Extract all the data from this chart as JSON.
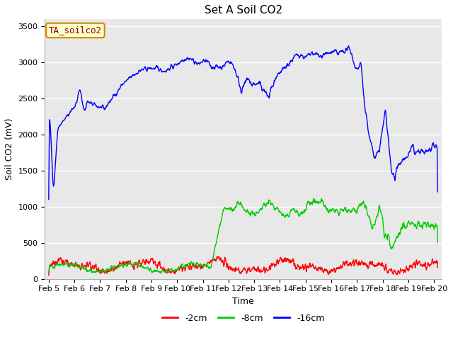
{
  "title": "Set A Soil CO2",
  "ylabel": "Soil CO2 (mV)",
  "xlabel": "Time",
  "legend_label": "TA_soilco2",
  "series_labels": [
    "-2cm",
    "-8cm",
    "-16cm"
  ],
  "series_colors": [
    "#ff0000",
    "#00cc00",
    "#0000ff"
  ],
  "xlim_days": [
    4.85,
    20.3
  ],
  "ylim": [
    0,
    3600
  ],
  "yticks": [
    0,
    500,
    1000,
    1500,
    2000,
    2500,
    3000,
    3500
  ],
  "xtick_labels": [
    "Feb 5",
    "Feb 6",
    "Feb 7",
    "Feb 8",
    "Feb 9",
    "Feb 10",
    "Feb 11",
    "Feb 12",
    "Feb 13",
    "Feb 14",
    "Feb 15",
    "Feb 16",
    "Feb 17",
    "Feb 18",
    "Feb 19",
    "Feb 20"
  ],
  "xtick_positions": [
    5,
    6,
    7,
    8,
    9,
    10,
    11,
    12,
    13,
    14,
    15,
    16,
    17,
    18,
    19,
    20
  ],
  "fig_bg_color": "#ffffff",
  "plot_bg_color": "#e8e8e8",
  "grid_color": "#ffffff",
  "title_fontsize": 11,
  "axis_label_fontsize": 9,
  "tick_fontsize": 8,
  "line_width": 1.0,
  "seed": 42
}
